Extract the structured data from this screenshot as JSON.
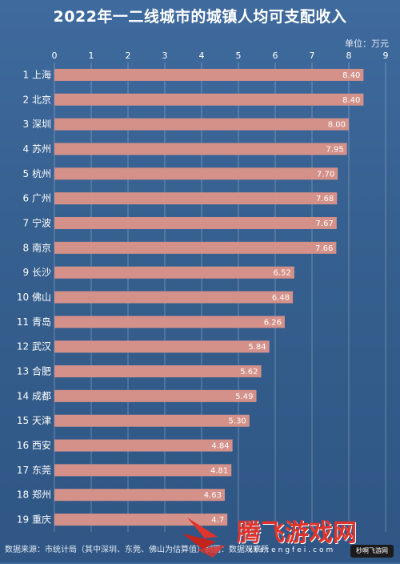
{
  "chart_data": {
    "type": "bar",
    "orientation": "horizontal",
    "title": "2022年一二线城市的城镇人均可支配收入",
    "unit_label": "单位：万元",
    "xlim": [
      0,
      9
    ],
    "xticks": [
      "0",
      "1",
      "2",
      "3",
      "4",
      "5",
      "6",
      "7",
      "8",
      "9"
    ],
    "grid": true,
    "bar_color": "#d4918a",
    "categories": [
      "1 上海",
      "2 北京",
      "3 深圳",
      "4 苏州",
      "5 杭州",
      "6 广州",
      "7 宁波",
      "8 南京",
      "9 长沙",
      "10 佛山",
      "11 青岛",
      "12 武汉",
      "13 合肥",
      "14 成都",
      "15 天津",
      "16 西安",
      "17 东莞",
      "18 郑州",
      "19 重庆"
    ],
    "values": [
      8.4,
      8.4,
      8.0,
      7.95,
      7.7,
      7.68,
      7.67,
      7.66,
      6.52,
      6.48,
      6.26,
      5.84,
      5.62,
      5.49,
      5.3,
      4.84,
      4.81,
      4.63,
      4.7
    ],
    "value_labels": [
      "8.40",
      "8.40",
      "8.00",
      "7.95",
      "7.70",
      "7.68",
      "7.67",
      "7.66",
      "6.52",
      "6.48",
      "6.26",
      "5.84",
      "5.62",
      "5.49",
      "5.30",
      "4.84",
      "4.81",
      "4.63",
      "4.7"
    ]
  },
  "footer": {
    "source": "数据来源：市统计局（其中深圳、东莞、佛山为估算值）",
    "chart_credit": "制图：数据观察所"
  },
  "watermark": {
    "text": "腾飞游戏网",
    "sub": "xtstengfei.com",
    "badge": "秒啊飞游网",
    "colors": {
      "text": "#e0332b"
    }
  }
}
